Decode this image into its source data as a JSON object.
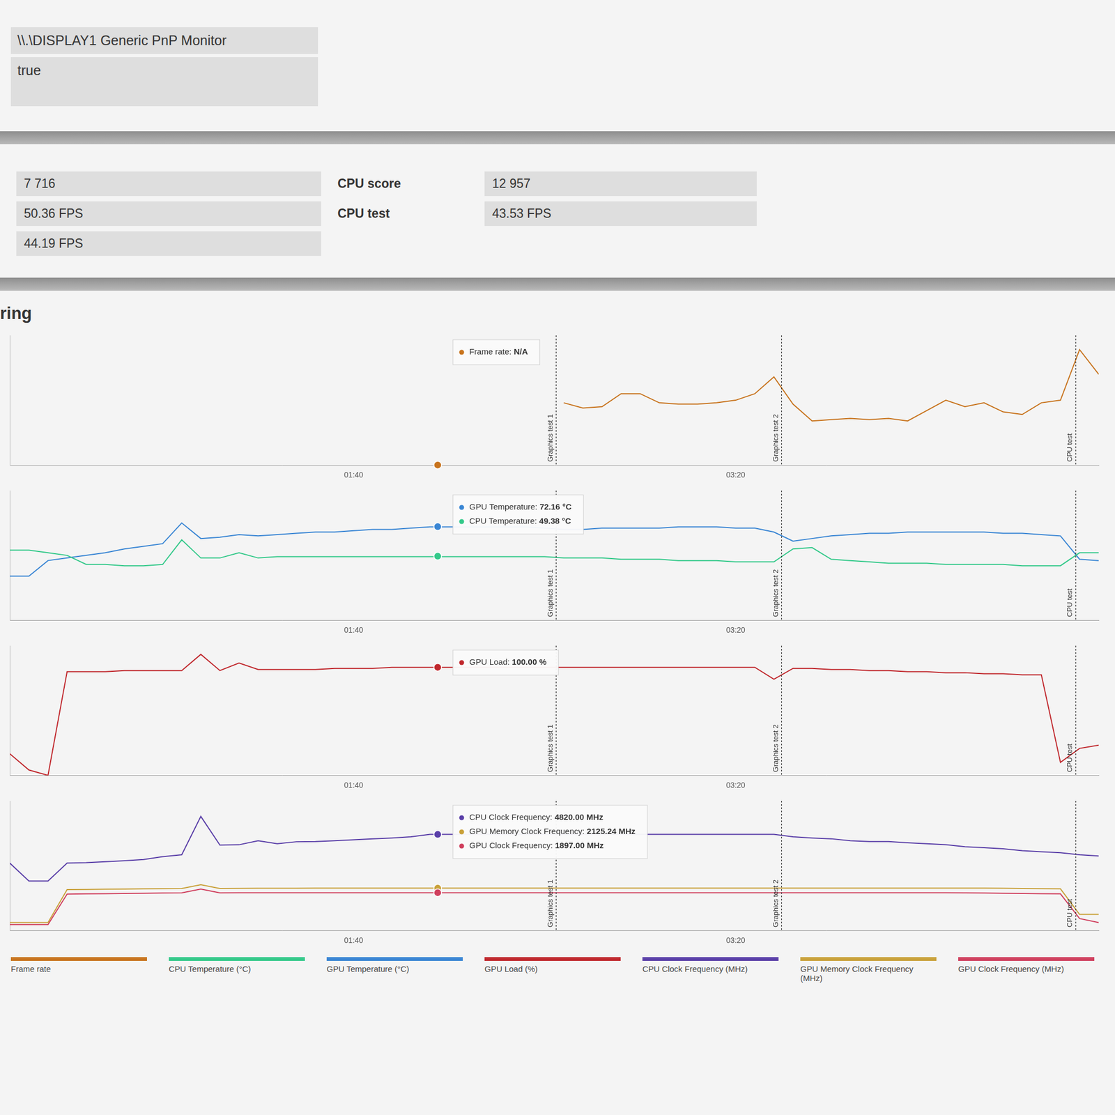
{
  "header": {
    "rows": [
      "\\\\.\\DISPLAY1 Generic PnP Monitor",
      "true"
    ]
  },
  "scores": {
    "values": [
      "7 716",
      "50.36 FPS",
      "44.19 FPS"
    ],
    "details": [
      {
        "label": "CPU score",
        "value": "12 957"
      },
      {
        "label": "CPU test",
        "value": "43.53 FPS"
      }
    ]
  },
  "section_title": "ring",
  "legend": "bottom",
  "chart_data": [
    {
      "type": "line",
      "x": [
        10,
        15,
        20,
        25,
        30,
        35,
        40,
        45,
        50,
        55,
        60,
        65,
        70,
        75,
        80,
        85,
        90,
        95,
        100,
        105,
        110,
        115,
        120,
        125,
        130,
        135,
        140,
        145,
        150,
        155,
        160,
        165,
        170,
        175,
        180,
        185,
        190,
        195,
        200,
        205,
        210,
        215,
        220,
        225,
        230,
        235,
        240,
        245,
        250,
        255,
        260,
        265,
        270,
        275,
        280,
        285,
        290,
        295
      ],
      "xlim": [
        10,
        295
      ],
      "xticks": [
        {
          "value": 100,
          "label": "01:40"
        },
        {
          "value": 200,
          "label": "03:20"
        }
      ],
      "ylim": [
        0,
        100
      ],
      "grid": false,
      "tick_labels": "x",
      "series": [
        {
          "name": "Frame rate",
          "color": "#c8741e",
          "values": [
            null,
            null,
            null,
            null,
            null,
            null,
            null,
            null,
            null,
            null,
            null,
            null,
            null,
            null,
            null,
            null,
            null,
            null,
            null,
            null,
            null,
            null,
            null,
            null,
            null,
            null,
            null,
            null,
            null,
            48,
            44,
            45,
            55,
            55,
            48,
            47,
            47,
            48,
            50,
            55,
            68,
            47,
            34,
            35,
            36,
            35,
            36,
            34,
            42,
            50,
            45,
            48,
            41,
            39,
            48,
            50,
            89,
            70
          ]
        }
      ],
      "markers": [
        {
          "x": 153,
          "label": "Graphics test 1"
        },
        {
          "x": 212,
          "label": "Graphics test 2"
        },
        {
          "x": 289,
          "label": "CPU test"
        }
      ],
      "hover": {
        "x": 122,
        "items": [
          {
            "series": "Frame rate",
            "text": "Frame rate: N/A",
            "value": null
          }
        ]
      }
    },
    {
      "type": "line",
      "x": [
        10,
        15,
        20,
        25,
        30,
        35,
        40,
        45,
        50,
        55,
        60,
        65,
        70,
        75,
        80,
        85,
        90,
        95,
        100,
        105,
        110,
        115,
        120,
        125,
        130,
        135,
        140,
        145,
        150,
        155,
        160,
        165,
        170,
        175,
        180,
        185,
        190,
        195,
        200,
        205,
        210,
        215,
        220,
        225,
        230,
        235,
        240,
        245,
        250,
        255,
        260,
        265,
        270,
        275,
        280,
        285,
        290,
        295
      ],
      "xlim": [
        10,
        295
      ],
      "xticks": [
        {
          "value": 100,
          "label": "01:40"
        },
        {
          "value": 200,
          "label": "03:20"
        }
      ],
      "ylim": [
        0,
        100
      ],
      "grid": false,
      "tick_labels": "x",
      "series": [
        {
          "name": "CPU Temperature (°C)",
          "color": "#34c98a",
          "values": [
            54,
            54,
            52,
            50,
            43,
            43,
            42,
            42,
            43,
            62,
            48,
            48,
            52,
            48,
            49,
            49,
            49,
            49,
            49,
            49,
            49,
            49,
            49,
            49,
            49,
            49,
            49,
            49,
            49,
            48,
            48,
            48,
            47,
            47,
            47,
            46,
            46,
            46,
            45,
            45,
            45,
            55,
            56,
            47,
            46,
            45,
            44,
            44,
            44,
            43,
            43,
            43,
            43,
            42,
            42,
            42,
            52,
            52
          ]
        },
        {
          "name": "GPU Temperature (°C)",
          "color": "#3a86d4",
          "values": [
            34,
            34,
            46,
            48,
            50,
            52,
            55,
            57,
            59,
            75,
            63,
            64,
            66,
            65,
            66,
            67,
            68,
            68,
            69,
            70,
            70,
            71,
            72,
            72,
            72,
            72,
            72,
            72,
            71,
            70,
            70,
            71,
            71,
            71,
            71,
            72,
            72,
            72,
            71,
            71,
            68,
            61,
            63,
            65,
            66,
            67,
            67,
            68,
            68,
            68,
            68,
            68,
            67,
            67,
            66,
            65,
            47,
            46
          ]
        }
      ],
      "markers": [
        {
          "x": 153,
          "label": "Graphics test 1"
        },
        {
          "x": 212,
          "label": "Graphics test 2"
        },
        {
          "x": 289,
          "label": "CPU test"
        }
      ],
      "hover": {
        "x": 122,
        "items": [
          {
            "series": "GPU Temperature (°C)",
            "text": "GPU Temperature: 72.16 °C",
            "value": 72.16
          },
          {
            "series": "CPU Temperature (°C)",
            "text": "CPU Temperature: 49.38 °C",
            "value": 49.38
          }
        ]
      }
    },
    {
      "type": "line",
      "x": [
        10,
        15,
        20,
        25,
        30,
        35,
        40,
        45,
        50,
        55,
        60,
        65,
        70,
        75,
        80,
        85,
        90,
        95,
        100,
        105,
        110,
        115,
        120,
        125,
        130,
        135,
        140,
        145,
        150,
        155,
        160,
        165,
        170,
        175,
        180,
        185,
        190,
        195,
        200,
        205,
        210,
        215,
        220,
        225,
        230,
        235,
        240,
        245,
        250,
        255,
        260,
        265,
        270,
        275,
        280,
        285,
        290,
        295
      ],
      "xlim": [
        10,
        295
      ],
      "xticks": [
        {
          "value": 100,
          "label": "01:40"
        },
        {
          "value": 200,
          "label": "03:20"
        }
      ],
      "ylim": [
        0,
        120
      ],
      "grid": false,
      "tick_labels": "x",
      "series": [
        {
          "name": "GPU Load (%)",
          "color": "#c0282d",
          "values": [
            20,
            5,
            0,
            96,
            96,
            96,
            97,
            97,
            97,
            97,
            112,
            97,
            104,
            98,
            98,
            98,
            98,
            99,
            99,
            99,
            100,
            100,
            100,
            100,
            100,
            100,
            100,
            100,
            100,
            100,
            100,
            100,
            100,
            100,
            100,
            100,
            100,
            100,
            100,
            100,
            89,
            99,
            99,
            98,
            98,
            97,
            97,
            96,
            96,
            95,
            95,
            94,
            94,
            93,
            93,
            12,
            25,
            28
          ]
        }
      ],
      "markers": [
        {
          "x": 153,
          "label": "Graphics test 1"
        },
        {
          "x": 212,
          "label": "Graphics test 2"
        },
        {
          "x": 289,
          "label": "CPU test"
        }
      ],
      "hover": {
        "x": 122,
        "items": [
          {
            "series": "GPU Load (%)",
            "text": "GPU Load: 100.00 %",
            "value": 100
          }
        ]
      }
    },
    {
      "type": "line",
      "x": [
        10,
        15,
        20,
        25,
        30,
        35,
        40,
        45,
        50,
        55,
        60,
        65,
        70,
        75,
        80,
        85,
        90,
        95,
        100,
        105,
        110,
        115,
        120,
        125,
        130,
        135,
        140,
        145,
        150,
        155,
        160,
        165,
        170,
        175,
        180,
        185,
        190,
        195,
        200,
        205,
        210,
        215,
        220,
        225,
        230,
        235,
        240,
        245,
        250,
        255,
        260,
        265,
        270,
        275,
        280,
        285,
        290,
        295
      ],
      "xlim": [
        10,
        295
      ],
      "xticks": [
        {
          "value": 100,
          "label": "01:40"
        },
        {
          "value": 200,
          "label": "03:20"
        }
      ],
      "ylim": [
        0,
        6500
      ],
      "grid": false,
      "tick_labels": "x",
      "series": [
        {
          "name": "CPU Clock Frequency (MHz)",
          "color": "#5a3fa8",
          "values": [
            3380,
            2480,
            2480,
            3380,
            3400,
            3450,
            3500,
            3560,
            3700,
            3800,
            5720,
            4280,
            4300,
            4500,
            4350,
            4450,
            4460,
            4500,
            4550,
            4600,
            4640,
            4700,
            4820,
            4820,
            4820,
            4820,
            4820,
            4820,
            4820,
            4820,
            4820,
            4820,
            4820,
            4820,
            4820,
            4820,
            4820,
            4820,
            4820,
            4820,
            4820,
            4700,
            4640,
            4600,
            4500,
            4460,
            4460,
            4400,
            4350,
            4300,
            4200,
            4150,
            4100,
            4000,
            3950,
            3900,
            3800,
            3740
          ]
        },
        {
          "name": "GPU Memory Clock Frequency (MHz)",
          "color": "#c9a13a",
          "values": [
            400,
            400,
            400,
            2050,
            2060,
            2070,
            2080,
            2090,
            2100,
            2110,
            2300,
            2110,
            2115,
            2120,
            2120,
            2120,
            2125,
            2125,
            2125,
            2125,
            2125,
            2125,
            2125,
            2125,
            2125,
            2125,
            2125,
            2125,
            2125,
            2125,
            2125,
            2125,
            2125,
            2125,
            2125,
            2125,
            2125,
            2125,
            2125,
            2125,
            2125,
            2125,
            2125,
            2125,
            2125,
            2125,
            2125,
            2125,
            2125,
            2125,
            2125,
            2125,
            2120,
            2110,
            2100,
            2090,
            810,
            810
          ]
        },
        {
          "name": "GPU Clock Frequency (MHz)",
          "color": "#d0405e",
          "values": [
            300,
            300,
            300,
            1830,
            1840,
            1850,
            1860,
            1870,
            1880,
            1890,
            2080,
            1890,
            1895,
            1897,
            1897,
            1897,
            1897,
            1897,
            1897,
            1897,
            1897,
            1897,
            1897,
            1897,
            1897,
            1897,
            1897,
            1897,
            1897,
            1897,
            1897,
            1897,
            1897,
            1897,
            1897,
            1897,
            1897,
            1897,
            1897,
            1897,
            1897,
            1897,
            1897,
            1897,
            1897,
            1897,
            1897,
            1897,
            1897,
            1897,
            1890,
            1880,
            1870,
            1860,
            1850,
            1840,
            600,
            400
          ]
        }
      ],
      "markers": [
        {
          "x": 153,
          "label": "Graphics test 1"
        },
        {
          "x": 212,
          "label": "Graphics test 2"
        },
        {
          "x": 289,
          "label": "CPU test"
        }
      ],
      "hover": {
        "x": 122,
        "items": [
          {
            "series": "CPU Clock Frequency (MHz)",
            "text": "CPU Clock Frequency: 4820.00 MHz",
            "value": 4820
          },
          {
            "series": "GPU Memory Clock Frequency (MHz)",
            "text": "GPU Memory Clock Frequency: 2125.24 MHz",
            "value": 2125.24
          },
          {
            "series": "GPU Clock Frequency (MHz)",
            "text": "GPU Clock Frequency: 1897.00 MHz",
            "value": 1897
          }
        ]
      }
    }
  ]
}
